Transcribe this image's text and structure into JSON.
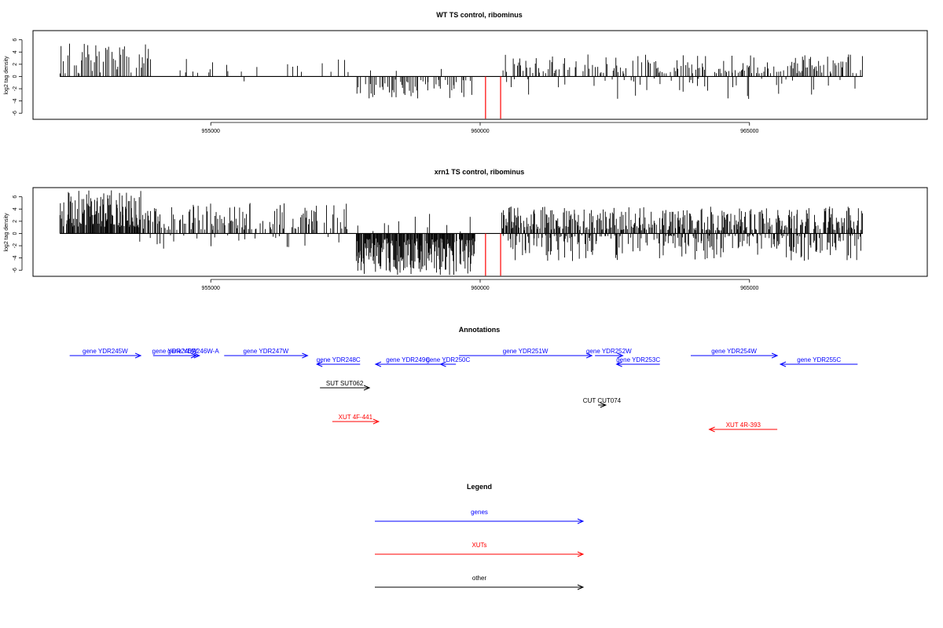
{
  "chart_data": [
    {
      "type": "bar",
      "title": "WT TS control, ribominus",
      "ylabel": "log2 tag density",
      "xlim": [
        951700,
        968300
      ],
      "ylim": [
        -7,
        7.5
      ],
      "x_ticks": [
        955000,
        960000,
        965000
      ],
      "x_tick_labels": [
        "955000",
        "960000",
        "965000"
      ],
      "y_ticks": [
        6,
        4,
        2,
        0,
        -2,
        -4,
        -6
      ],
      "y_tick_labels": [
        "6",
        "4",
        "2",
        "0",
        "-2",
        "-4",
        "-6"
      ],
      "data_start": 952200,
      "data_end": 967100,
      "colors": {
        "bars": "#000000",
        "highlight": "#ff0000"
      },
      "highlight_bars": [
        {
          "x": 960100,
          "y": -6.9
        },
        {
          "x": 960380,
          "y": -6.9
        }
      ],
      "regions": [
        {
          "from": 952200,
          "to": 953900,
          "sign": 1,
          "min": 0.5,
          "max": 5.7,
          "step": 30,
          "p": 0.85
        },
        {
          "from": 954200,
          "to": 957600,
          "sign": 1,
          "min": 0.6,
          "max": 3.2,
          "step": 40,
          "p": 0.28
        },
        {
          "from": 954200,
          "to": 957600,
          "sign": -1,
          "min": 0.3,
          "max": 2.0,
          "step": 180,
          "p": 0.15
        },
        {
          "from": 957700,
          "to": 959900,
          "sign": -1,
          "min": 0.5,
          "max": 3.6,
          "step": 20,
          "p": 0.55
        },
        {
          "from": 957700,
          "to": 959900,
          "sign": 1,
          "min": 0.3,
          "max": 1.5,
          "step": 80,
          "p": 0.08
        },
        {
          "from": 960400,
          "to": 967100,
          "sign": 1,
          "min": 0.5,
          "max": 3.6,
          "step": 22,
          "p": 0.55
        },
        {
          "from": 960400,
          "to": 967100,
          "sign": -1,
          "min": 0.3,
          "max": 3.8,
          "step": 30,
          "p": 0.2
        }
      ]
    },
    {
      "type": "bar",
      "title": "xrn1 TS control, ribominus",
      "ylabel": "log2 tag density",
      "xlim": [
        951700,
        968300
      ],
      "ylim": [
        -7,
        7.5
      ],
      "x_ticks": [
        955000,
        960000,
        965000
      ],
      "x_tick_labels": [
        "955000",
        "960000",
        "965000"
      ],
      "y_ticks": [
        6,
        4,
        2,
        0,
        -2,
        -4,
        -6
      ],
      "y_tick_labels": [
        "6",
        "4",
        "2",
        "0",
        "-2",
        "-4",
        "-6"
      ],
      "data_start": 952200,
      "data_end": 967100,
      "colors": {
        "bars": "#000000",
        "highlight": "#ff0000"
      },
      "highlight_bars": [
        {
          "x": 960100,
          "y": -6.9
        },
        {
          "x": 960380,
          "y": -6.9
        }
      ],
      "regions": [
        {
          "from": 952200,
          "to": 953700,
          "sign": 1,
          "min": 1.0,
          "max": 7.2,
          "step": 12,
          "p": 0.95
        },
        {
          "from": 953700,
          "to": 957600,
          "sign": 1,
          "min": 0.6,
          "max": 5.0,
          "step": 18,
          "p": 0.55
        },
        {
          "from": 953700,
          "to": 957600,
          "sign": -1,
          "min": 0.3,
          "max": 2.5,
          "step": 60,
          "p": 0.25
        },
        {
          "from": 957700,
          "to": 959900,
          "sign": -1,
          "min": 0.8,
          "max": 6.8,
          "step": 10,
          "p": 0.9
        },
        {
          "from": 957700,
          "to": 959900,
          "sign": 1,
          "min": 0.3,
          "max": 3.5,
          "step": 40,
          "p": 0.2
        },
        {
          "from": 960400,
          "to": 967100,
          "sign": 1,
          "min": 0.5,
          "max": 4.4,
          "step": 14,
          "p": 0.7
        },
        {
          "from": 960400,
          "to": 967100,
          "sign": -1,
          "min": 0.3,
          "max": 4.5,
          "step": 16,
          "p": 0.55
        }
      ]
    }
  ],
  "annotations": {
    "title": "Annotations",
    "colors": {
      "genes": "#0000ff",
      "xuts": "#ff0000",
      "other": "#000000"
    },
    "features": [
      {
        "label": "gene YDR245W",
        "from": 952500,
        "to": 954800,
        "strand": "+",
        "type": "genes",
        "row": 0
      },
      {
        "label": "gene YDR246W",
        "from": 955200,
        "to": 956600,
        "strand": "+",
        "type": "genes",
        "row": 0
      },
      {
        "label": "gene YDR246W-A",
        "from": 956300,
        "to": 956700,
        "strand": "+",
        "type": "genes",
        "row": 0
      },
      {
        "label": "gene YDR247W",
        "from": 957500,
        "to": 960200,
        "strand": "+",
        "type": "genes",
        "row": 0
      },
      {
        "label": "gene YDR248C",
        "from": 960500,
        "to": 961900,
        "strand": "-",
        "type": "genes",
        "row": 1
      },
      {
        "label": "gene YDR249C",
        "from": 962400,
        "to": 964500,
        "strand": "-",
        "type": "genes",
        "row": 1
      },
      {
        "label": "gene YDR250C",
        "from": 964500,
        "to": 965000,
        "strand": "-",
        "type": "genes",
        "row": 1
      },
      {
        "label": "gene YDR251W",
        "from": 965100,
        "to": 969400,
        "strand": "+",
        "type": "genes",
        "row": 0
      },
      {
        "label": "gene YDR252W",
        "from": 969500,
        "to": 970400,
        "strand": "+",
        "type": "genes",
        "row": 0
      },
      {
        "label": "gene YDR253C",
        "from": 970200,
        "to": 971600,
        "strand": "-",
        "type": "genes",
        "row": 1
      },
      {
        "label": "gene YDR254W",
        "from": 972600,
        "to": 975400,
        "strand": "+",
        "type": "genes",
        "row": 0
      },
      {
        "label": "gene YDR255C",
        "from": 975500,
        "to": 978000,
        "strand": "-",
        "type": "genes",
        "row": 1
      },
      {
        "label": "SUT SUT062",
        "from": 960600,
        "to": 962200,
        "strand": "+",
        "type": "other",
        "row": 2
      },
      {
        "label": "CUT CUT074",
        "from": 969600,
        "to": 969850,
        "strand": "+",
        "type": "other",
        "row": 3
      },
      {
        "label": "XUT 4F-441",
        "from": 961000,
        "to": 962500,
        "strand": "+",
        "type": "xuts",
        "row": 4
      },
      {
        "label": "XUT 4R-393",
        "from": 973200,
        "to": 975400,
        "strand": "-",
        "type": "xuts",
        "row": 5
      }
    ]
  },
  "legend": {
    "title": "Legend",
    "items": [
      {
        "label": "genes",
        "type": "genes"
      },
      {
        "label": "XUTs",
        "type": "xuts"
      },
      {
        "label": "other",
        "type": "other"
      }
    ]
  }
}
